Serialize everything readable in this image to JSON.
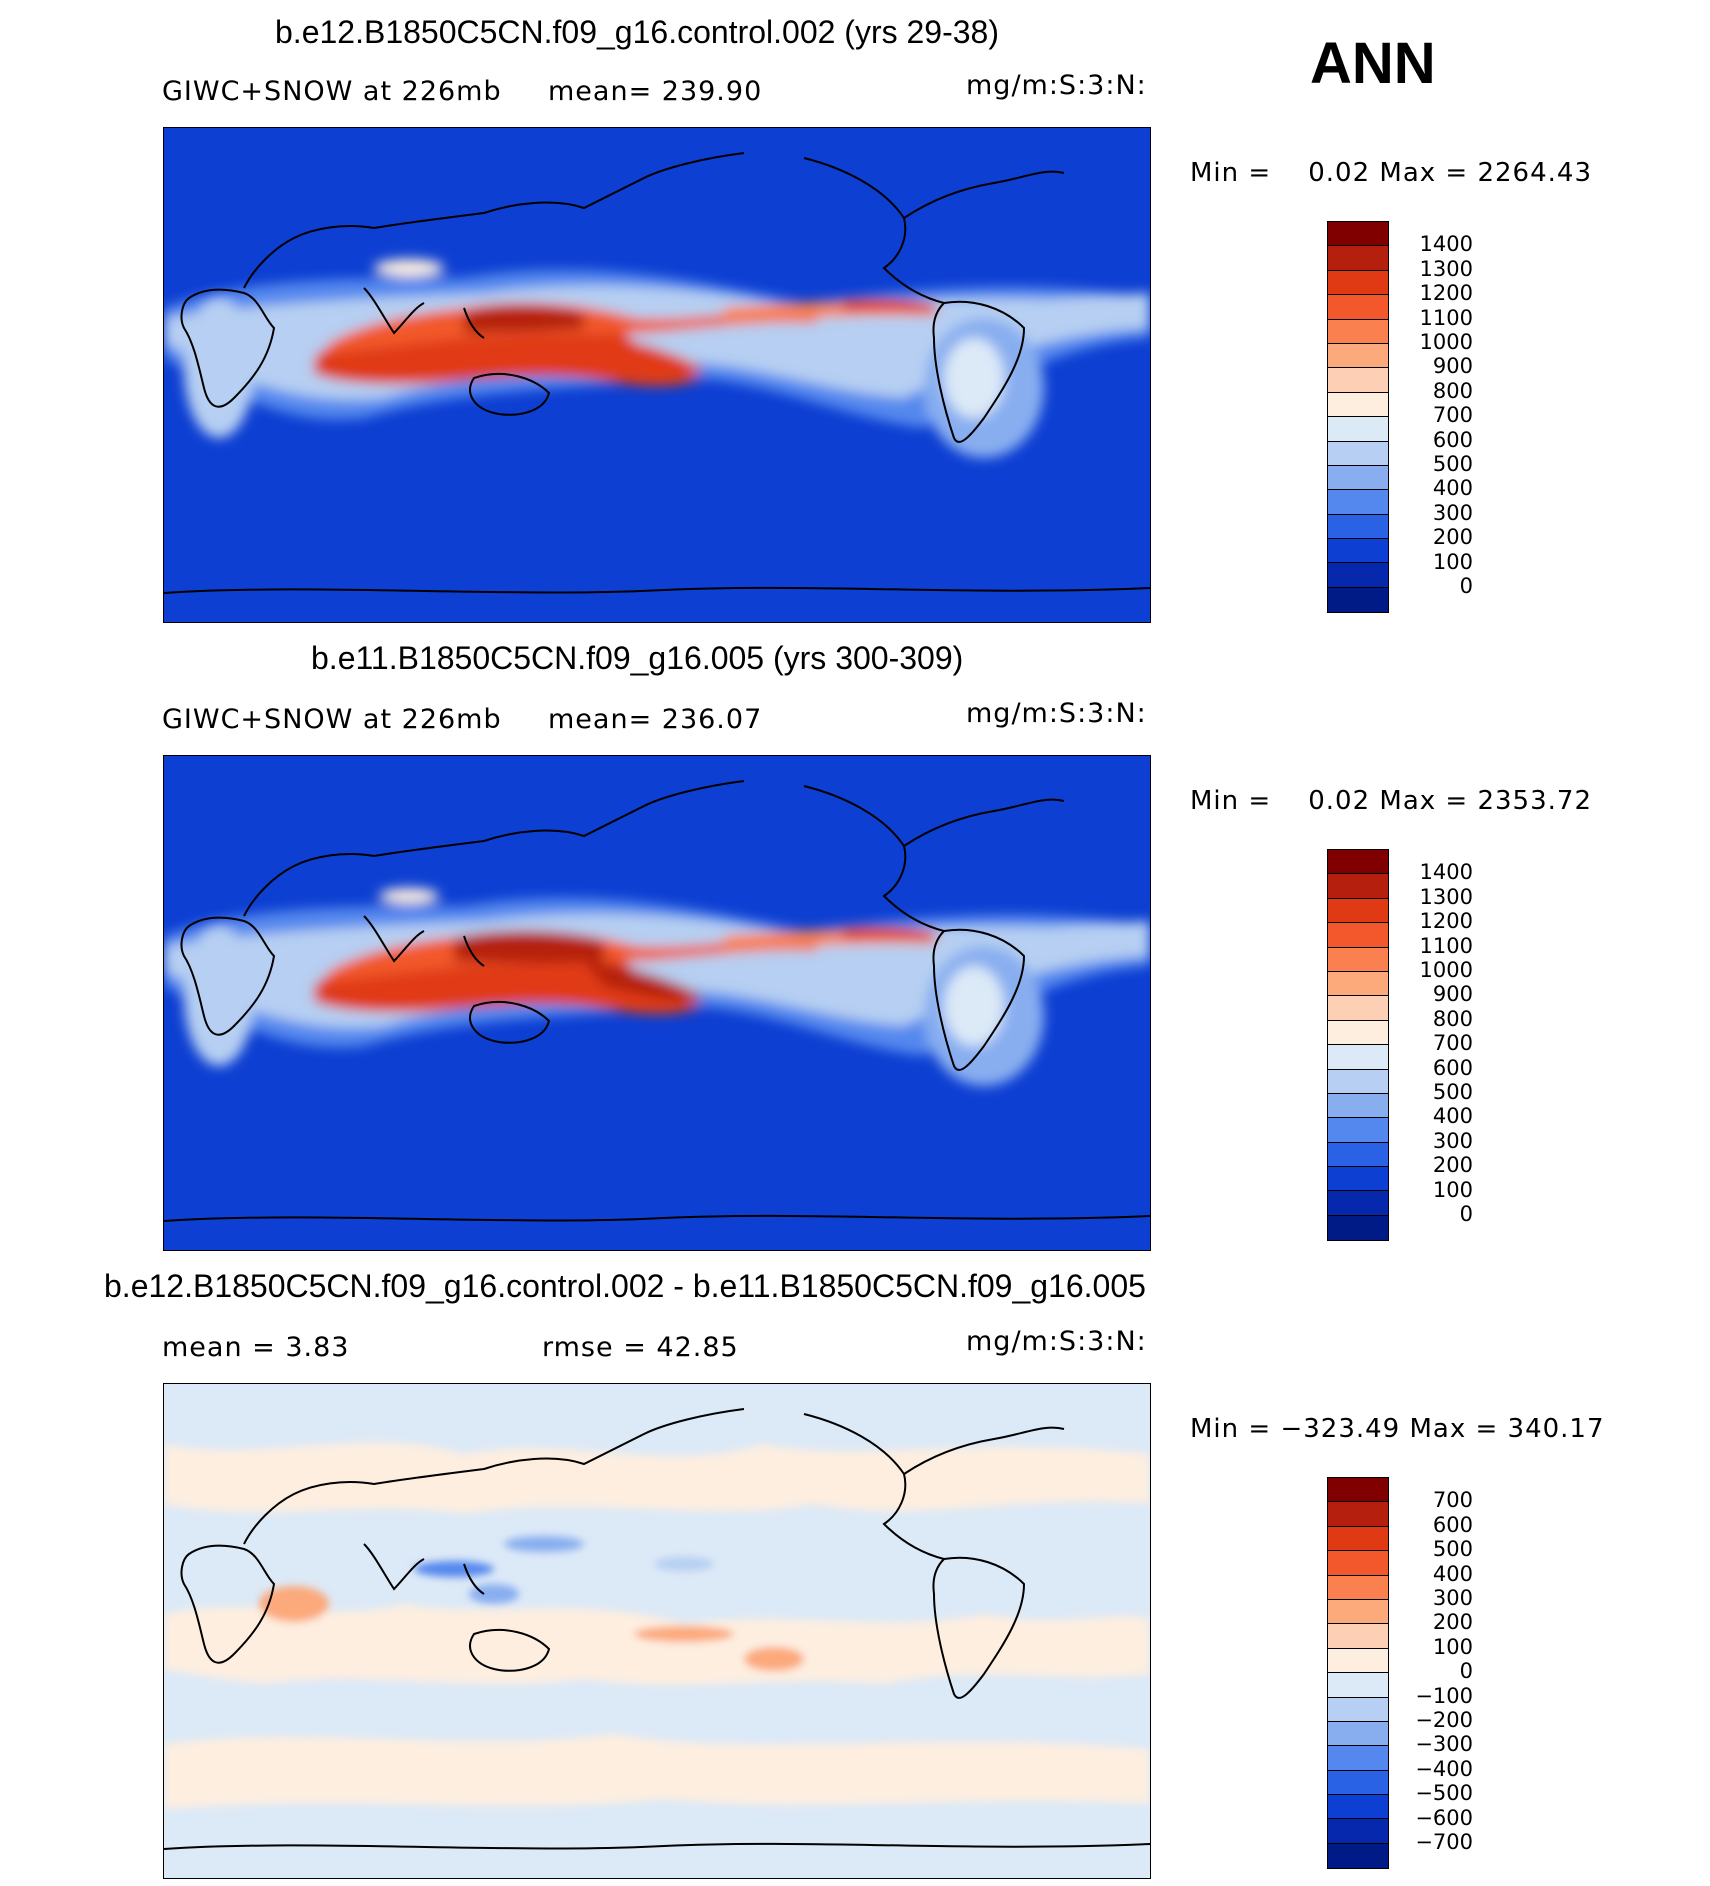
{
  "season": "ANN",
  "panels": [
    {
      "title": "b.e12.B1850C5CN.f09_g16.control.002 (yrs 29-38)",
      "left_text": "GIWC+SNOW at 226mb",
      "mid_text": "mean= 239.90",
      "units": "mg/m:S:3:N:",
      "minmax": "Min =    0.02 Max = 2264.43",
      "colorbar": {
        "labels": [
          "1400",
          "1300",
          "1200",
          "1100",
          "1000",
          "900",
          "800",
          "700",
          "600",
          "500",
          "400",
          "300",
          "200",
          "100",
          "0"
        ],
        "colors": [
          "#800000",
          "#b5200e",
          "#e03a14",
          "#f2582c",
          "#fa8050",
          "#fca97c",
          "#fdd0b5",
          "#fdeee0",
          "#dce9f7",
          "#b6cff2",
          "#88aef0",
          "#5588ee",
          "#2a62e6",
          "#0d3fd2",
          "#0528ad",
          "#001a86"
        ]
      }
    },
    {
      "title": "b.e11.B1850C5CN.f09_g16.005 (yrs 300-309)",
      "left_text": "GIWC+SNOW at 226mb",
      "mid_text": "mean= 236.07",
      "units": "mg/m:S:3:N:",
      "minmax": "Min =    0.02 Max = 2353.72",
      "colorbar": {
        "labels": [
          "1400",
          "1300",
          "1200",
          "1100",
          "1000",
          "900",
          "800",
          "700",
          "600",
          "500",
          "400",
          "300",
          "200",
          "100",
          "0"
        ],
        "colors": [
          "#800000",
          "#b5200e",
          "#e03a14",
          "#f2582c",
          "#fa8050",
          "#fca97c",
          "#fdd0b5",
          "#fdeee0",
          "#dce9f7",
          "#b6cff2",
          "#88aef0",
          "#5588ee",
          "#2a62e6",
          "#0d3fd2",
          "#0528ad",
          "#001a86"
        ]
      }
    },
    {
      "title": "b.e12.B1850C5CN.f09_g16.control.002 - b.e11.B1850C5CN.f09_g16.005",
      "left_text": "mean =    3.83",
      "mid_text": "rmse =   42.85",
      "units": "mg/m:S:3:N:",
      "minmax": "Min = −323.49 Max = 340.17",
      "colorbar": {
        "labels": [
          "700",
          "600",
          "500",
          "400",
          "300",
          "200",
          "100",
          "0",
          "−100",
          "−200",
          "−300",
          "−400",
          "−500",
          "−600",
          "−700"
        ],
        "colors": [
          "#800000",
          "#b5200e",
          "#e03a14",
          "#f2582c",
          "#fa8050",
          "#fca97c",
          "#fdd0b5",
          "#fdeee0",
          "#dce9f7",
          "#b6cff2",
          "#88aef0",
          "#5588ee",
          "#2a62e6",
          "#0d3fd2",
          "#0528ad",
          "#001a86"
        ]
      }
    }
  ]
}
